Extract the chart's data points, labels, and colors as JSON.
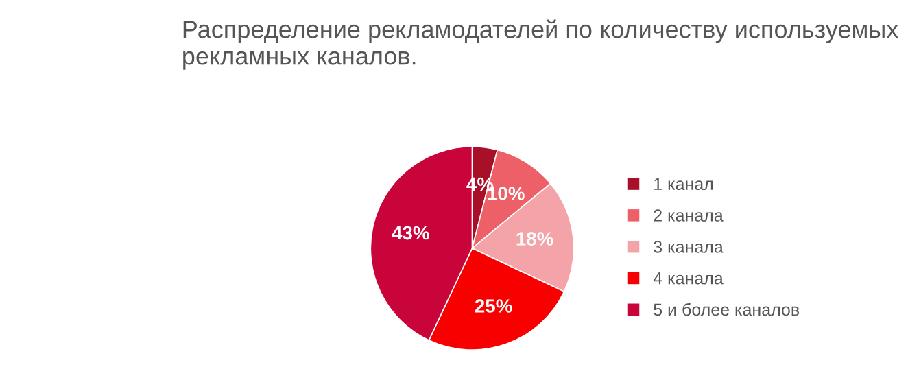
{
  "chart_data": {
    "type": "pie",
    "title": "Распределение рекламодателей по количеству используемых рекламных каналов.",
    "categories": [
      "1 канал",
      "2 канала",
      "3 канала",
      "4 канала",
      "5 и более каналов"
    ],
    "values": [
      4,
      10,
      18,
      25,
      43
    ],
    "colors": [
      "#a8102a",
      "#ee6068",
      "#f4a4a8",
      "#f80000",
      "#c8043a"
    ],
    "value_labels": [
      "4%",
      "10%",
      "18%",
      "25%",
      "43%"
    ],
    "legend": "right"
  }
}
